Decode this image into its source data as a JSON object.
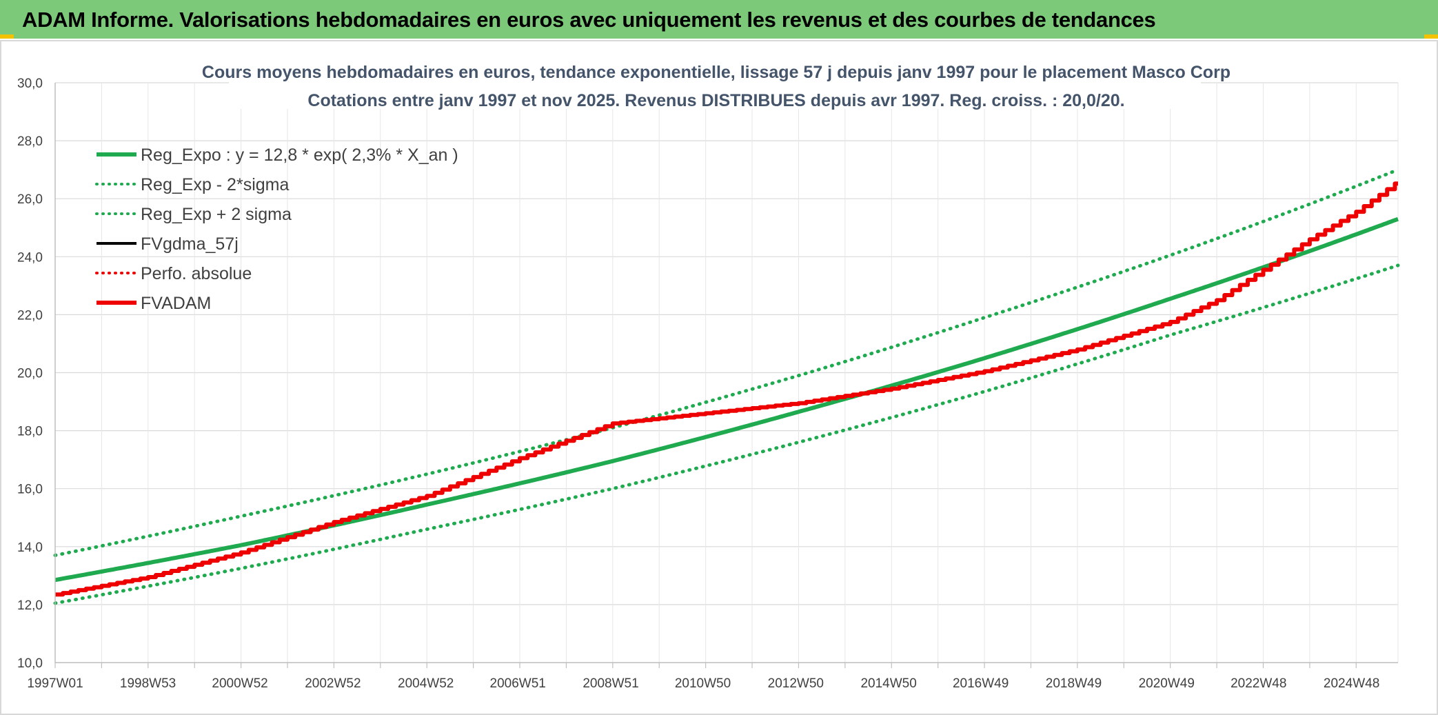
{
  "banner": {
    "title": "ADAM Informe. Valorisations hebdomadaires en euros avec uniquement les revenus et des courbes de tendances"
  },
  "colors": {
    "banner_bg": "#7dc97a",
    "reg_green": "#1faa4f",
    "red": "#ee0000",
    "black": "#000000",
    "title_text": "#44546a",
    "grid": "#d9d9d9"
  },
  "chart_data": {
    "type": "line",
    "title": "Cours moyens hebdomadaires en euros, tendance exponentielle, lissage 57 j depuis janv 1997 pour le placement Masco Corp",
    "subtitle": "Cotations entre janv 1997 et nov 2025. Revenus DISTRIBUES depuis avr 1997. Reg. croiss. : 20,0/20.",
    "ylim": [
      10,
      30
    ],
    "y_ticks": [
      "10,0",
      "12,0",
      "14,0",
      "16,0",
      "18,0",
      "20,0",
      "22,0",
      "24,0",
      "26,0",
      "28,0",
      "30,0"
    ],
    "x_range": [
      "1997W01",
      "2025W48"
    ],
    "x_ticks": [
      "1997W01",
      "1998W53",
      "2000W52",
      "2002W52",
      "2004W52",
      "2006W51",
      "2008W51",
      "2010W50",
      "2012W50",
      "2014W50",
      "2016W49",
      "2018W49",
      "2020W49",
      "2022W48",
      "2024W48"
    ],
    "grid": true,
    "legend_position": "top-left",
    "legend": [
      {
        "label": "Reg_Expo : y = 12,8 * exp( 2,3% *  X_an )",
        "color": "#1faa4f",
        "style": "solid-thick"
      },
      {
        "label": "Reg_Exp - 2*sigma",
        "color": "#1faa4f",
        "style": "dotted"
      },
      {
        "label": "Reg_Exp + 2 sigma",
        "color": "#1faa4f",
        "style": "dotted"
      },
      {
        "label": "FVgdma_57j",
        "color": "#000000",
        "style": "solid"
      },
      {
        "label": "Perfo. absolue",
        "color": "#ee0000",
        "style": "dotted"
      },
      {
        "label": "FVADAM",
        "color": "#ee0000",
        "style": "solid-thick"
      }
    ],
    "series": [
      {
        "name": "Reg_Expo : y = 12,8 * exp( 2,3% *  X_an )",
        "x": [
          "1997W01",
          "2001W01",
          "2005W01",
          "2009W01",
          "2013W01",
          "2017W01",
          "2021W01",
          "2025W48"
        ],
        "values": [
          12.85,
          14.05,
          15.45,
          16.95,
          18.65,
          20.5,
          22.55,
          25.3
        ]
      },
      {
        "name": "Reg_Exp - 2*sigma",
        "x": [
          "1997W01",
          "2001W01",
          "2005W01",
          "2009W01",
          "2013W01",
          "2017W01",
          "2021W01",
          "2025W48"
        ],
        "values": [
          12.05,
          13.25,
          14.6,
          16.0,
          17.6,
          19.35,
          21.3,
          23.7
        ]
      },
      {
        "name": "Reg_Exp + 2 sigma",
        "x": [
          "1997W01",
          "2001W01",
          "2005W01",
          "2009W01",
          "2013W01",
          "2017W01",
          "2021W01",
          "2025W48"
        ],
        "values": [
          13.7,
          15.05,
          16.5,
          18.1,
          19.9,
          21.9,
          24.05,
          27.0
        ]
      },
      {
        "name": "FVADAM",
        "x": [
          "1997W01",
          "1999W01",
          "2001W01",
          "2003W01",
          "2005W01",
          "2007W01",
          "2009W01",
          "2011W01",
          "2013W01",
          "2015W01",
          "2017W01",
          "2019W01",
          "2021W01",
          "2022W01",
          "2023W01",
          "2024W01",
          "2025W01",
          "2025W48"
        ],
        "values": [
          12.35,
          12.95,
          13.8,
          14.85,
          15.75,
          17.05,
          18.25,
          18.6,
          18.95,
          19.45,
          20.05,
          20.8,
          21.75,
          22.5,
          23.55,
          24.6,
          25.55,
          26.6
        ]
      }
    ]
  }
}
